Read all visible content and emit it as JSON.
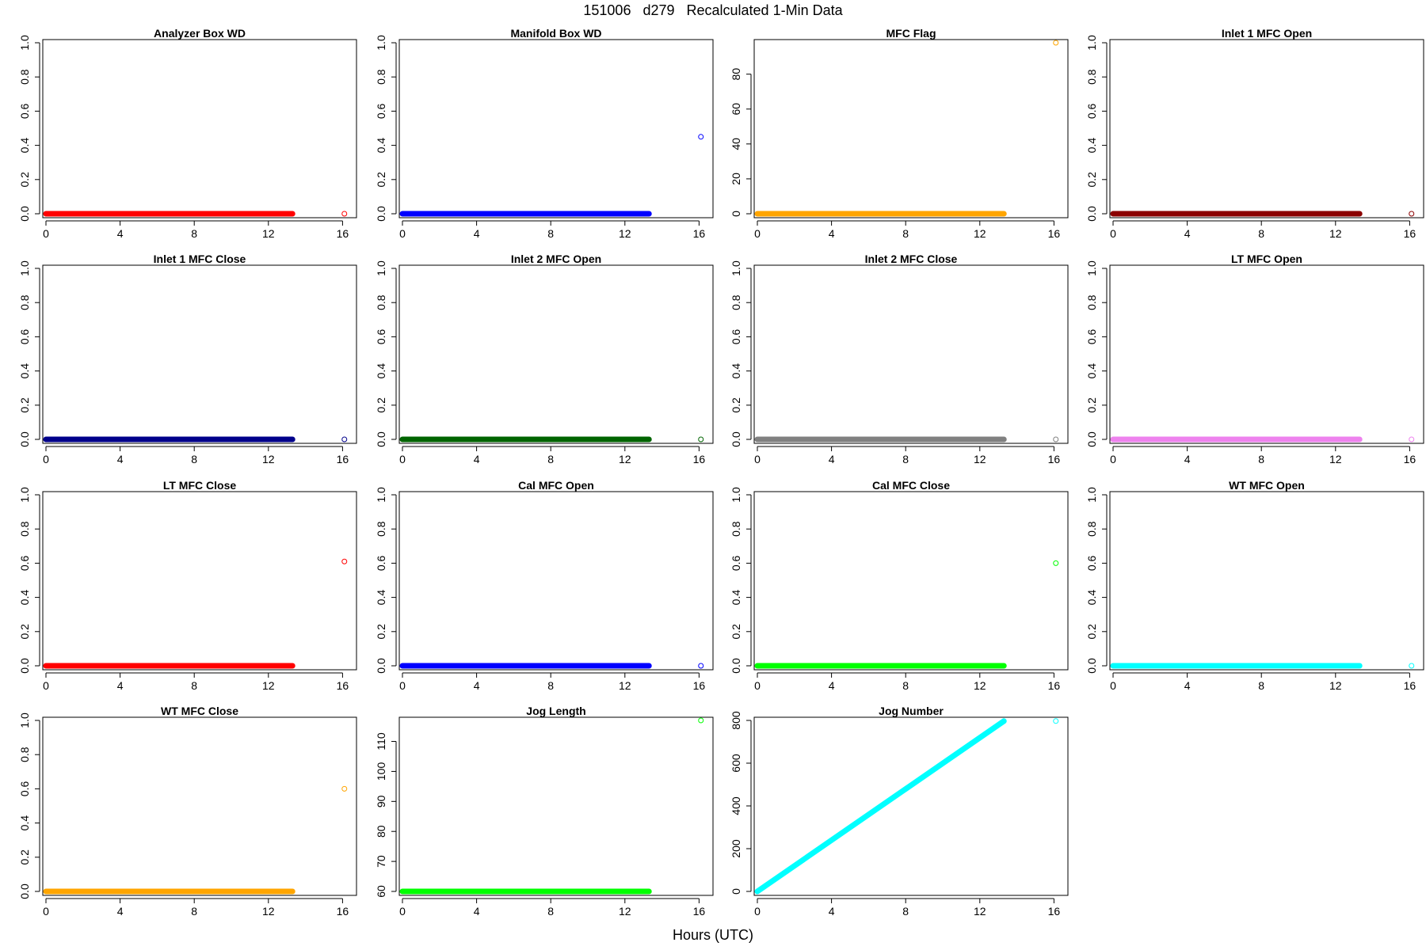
{
  "figure": {
    "title": "151006   d279   Recalculated 1-Min Data",
    "xlabel": "Hours (UTC)"
  },
  "chart_data": [
    {
      "type": "scatter",
      "title": "Analyzer Box WD",
      "color": "#ff0000",
      "xlim": [
        0,
        16
      ],
      "ylim": [
        0,
        1
      ],
      "xticks": [
        0,
        4,
        8,
        12,
        16
      ],
      "yticks": [
        0,
        0.2,
        0.4,
        0.6,
        0.8,
        1.0
      ],
      "ytick_labels": [
        "0.0",
        "0.2",
        "0.4",
        "0.6",
        "0.8",
        "1.0"
      ],
      "series_x_range": [
        0,
        13.3
      ],
      "series_y_range": [
        0,
        0
      ],
      "outlier": {
        "x": 16.1,
        "y": 0
      }
    },
    {
      "type": "scatter",
      "title": "Manifold Box WD",
      "color": "#0000ff",
      "xlim": [
        0,
        16
      ],
      "ylim": [
        0,
        1
      ],
      "xticks": [
        0,
        4,
        8,
        12,
        16
      ],
      "yticks": [
        0,
        0.2,
        0.4,
        0.6,
        0.8,
        1.0
      ],
      "ytick_labels": [
        "0.0",
        "0.2",
        "0.4",
        "0.6",
        "0.8",
        "1.0"
      ],
      "series_x_range": [
        0,
        13.3
      ],
      "series_y_range": [
        0,
        0
      ],
      "outlier": {
        "x": 16.1,
        "y": 0.45
      }
    },
    {
      "type": "scatter",
      "title": "MFC Flag",
      "color": "#ffa500",
      "xlim": [
        0,
        16
      ],
      "ylim": [
        0,
        98
      ],
      "xticks": [
        0,
        4,
        8,
        12,
        16
      ],
      "yticks": [
        0,
        20,
        40,
        60,
        80
      ],
      "ytick_labels": [
        "0",
        "20",
        "40",
        "60",
        "80"
      ],
      "series_x_range": [
        0,
        13.3
      ],
      "series_y_range": [
        0,
        0
      ],
      "outlier": {
        "x": 16.1,
        "y": 98
      }
    },
    {
      "type": "scatter",
      "title": "Inlet 1 MFC Open",
      "color": "#8b0000",
      "xlim": [
        0,
        16
      ],
      "ylim": [
        0,
        1
      ],
      "xticks": [
        0,
        4,
        8,
        12,
        16
      ],
      "yticks": [
        0,
        0.2,
        0.4,
        0.6,
        0.8,
        1.0
      ],
      "ytick_labels": [
        "0.0",
        "0.2",
        "0.4",
        "0.6",
        "0.8",
        "1.0"
      ],
      "series_x_range": [
        0,
        13.3
      ],
      "series_y_range": [
        0,
        0
      ],
      "outlier": {
        "x": 16.1,
        "y": 0
      }
    },
    {
      "type": "scatter",
      "title": "Inlet 1 MFC Close",
      "color": "#00008b",
      "xlim": [
        0,
        16
      ],
      "ylim": [
        0,
        1
      ],
      "xticks": [
        0,
        4,
        8,
        12,
        16
      ],
      "yticks": [
        0,
        0.2,
        0.4,
        0.6,
        0.8,
        1.0
      ],
      "ytick_labels": [
        "0.0",
        "0.2",
        "0.4",
        "0.6",
        "0.8",
        "1.0"
      ],
      "series_x_range": [
        0,
        13.3
      ],
      "series_y_range": [
        0,
        0
      ],
      "outlier": {
        "x": 16.1,
        "y": 0
      }
    },
    {
      "type": "scatter",
      "title": "Inlet 2 MFC Open",
      "color": "#006400",
      "xlim": [
        0,
        16
      ],
      "ylim": [
        0,
        1
      ],
      "xticks": [
        0,
        4,
        8,
        12,
        16
      ],
      "yticks": [
        0,
        0.2,
        0.4,
        0.6,
        0.8,
        1.0
      ],
      "ytick_labels": [
        "0.0",
        "0.2",
        "0.4",
        "0.6",
        "0.8",
        "1.0"
      ],
      "series_x_range": [
        0,
        13.3
      ],
      "series_y_range": [
        0,
        0
      ],
      "outlier": {
        "x": 16.1,
        "y": 0
      }
    },
    {
      "type": "scatter",
      "title": "Inlet 2 MFC Close",
      "color": "#808080",
      "xlim": [
        0,
        16
      ],
      "ylim": [
        0,
        1
      ],
      "xticks": [
        0,
        4,
        8,
        12,
        16
      ],
      "yticks": [
        0,
        0.2,
        0.4,
        0.6,
        0.8,
        1.0
      ],
      "ytick_labels": [
        "0.0",
        "0.2",
        "0.4",
        "0.6",
        "0.8",
        "1.0"
      ],
      "series_x_range": [
        0,
        13.3
      ],
      "series_y_range": [
        0,
        0
      ],
      "outlier": {
        "x": 16.1,
        "y": 0
      }
    },
    {
      "type": "scatter",
      "title": "LT MFC Open",
      "color": "#ee82ee",
      "xlim": [
        0,
        16
      ],
      "ylim": [
        0,
        1
      ],
      "xticks": [
        0,
        4,
        8,
        12,
        16
      ],
      "yticks": [
        0,
        0.2,
        0.4,
        0.6,
        0.8,
        1.0
      ],
      "ytick_labels": [
        "0.0",
        "0.2",
        "0.4",
        "0.6",
        "0.8",
        "1.0"
      ],
      "series_x_range": [
        0,
        13.3
      ],
      "series_y_range": [
        0,
        0
      ],
      "outlier": {
        "x": 16.1,
        "y": 0
      }
    },
    {
      "type": "scatter",
      "title": "LT MFC Close",
      "color": "#ff0000",
      "xlim": [
        0,
        16
      ],
      "ylim": [
        0,
        1
      ],
      "xticks": [
        0,
        4,
        8,
        12,
        16
      ],
      "yticks": [
        0,
        0.2,
        0.4,
        0.6,
        0.8,
        1.0
      ],
      "ytick_labels": [
        "0.0",
        "0.2",
        "0.4",
        "0.6",
        "0.8",
        "1.0"
      ],
      "series_x_range": [
        0,
        13.3
      ],
      "series_y_range": [
        0,
        0
      ],
      "outlier": {
        "x": 16.1,
        "y": 0.61
      }
    },
    {
      "type": "scatter",
      "title": "Cal MFC Open",
      "color": "#0000ff",
      "xlim": [
        0,
        16
      ],
      "ylim": [
        0,
        1
      ],
      "xticks": [
        0,
        4,
        8,
        12,
        16
      ],
      "yticks": [
        0,
        0.2,
        0.4,
        0.6,
        0.8,
        1.0
      ],
      "ytick_labels": [
        "0.0",
        "0.2",
        "0.4",
        "0.6",
        "0.8",
        "1.0"
      ],
      "series_x_range": [
        0,
        13.3
      ],
      "series_y_range": [
        0,
        0
      ],
      "outlier": {
        "x": 16.1,
        "y": 0
      }
    },
    {
      "type": "scatter",
      "title": "Cal MFC Close",
      "color": "#00ff00",
      "xlim": [
        0,
        16
      ],
      "ylim": [
        0,
        1
      ],
      "xticks": [
        0,
        4,
        8,
        12,
        16
      ],
      "yticks": [
        0,
        0.2,
        0.4,
        0.6,
        0.8,
        1.0
      ],
      "ytick_labels": [
        "0.0",
        "0.2",
        "0.4",
        "0.6",
        "0.8",
        "1.0"
      ],
      "series_x_range": [
        0,
        13.3
      ],
      "series_y_range": [
        0,
        0
      ],
      "outlier": {
        "x": 16.1,
        "y": 0.6
      }
    },
    {
      "type": "scatter",
      "title": "WT MFC Open",
      "color": "#00ffff",
      "xlim": [
        0,
        16
      ],
      "ylim": [
        0,
        1
      ],
      "xticks": [
        0,
        4,
        8,
        12,
        16
      ],
      "yticks": [
        0,
        0.2,
        0.4,
        0.6,
        0.8,
        1.0
      ],
      "ytick_labels": [
        "0.0",
        "0.2",
        "0.4",
        "0.6",
        "0.8",
        "1.0"
      ],
      "series_x_range": [
        0,
        13.3
      ],
      "series_y_range": [
        0,
        0
      ],
      "outlier": {
        "x": 16.1,
        "y": 0
      }
    },
    {
      "type": "scatter",
      "title": "WT MFC Close",
      "color": "#ffa500",
      "xlim": [
        0,
        16
      ],
      "ylim": [
        0,
        1
      ],
      "xticks": [
        0,
        4,
        8,
        12,
        16
      ],
      "yticks": [
        0,
        0.2,
        0.4,
        0.6,
        0.8,
        1.0
      ],
      "ytick_labels": [
        "0.0",
        "0.2",
        "0.4",
        "0.6",
        "0.8",
        "1.0"
      ],
      "series_x_range": [
        0,
        13.3
      ],
      "series_y_range": [
        0,
        0
      ],
      "outlier": {
        "x": 16.1,
        "y": 0.6
      }
    },
    {
      "type": "scatter",
      "title": "Jog Length",
      "color": "#00ff00",
      "xlim": [
        0,
        16
      ],
      "ylim": [
        60,
        117
      ],
      "xticks": [
        0,
        4,
        8,
        12,
        16
      ],
      "yticks": [
        60,
        70,
        80,
        90,
        100,
        110
      ],
      "ytick_labels": [
        "60",
        "70",
        "80",
        "90",
        "100",
        "110"
      ],
      "series_x_range": [
        0,
        13.3
      ],
      "series_y_range": [
        60,
        60
      ],
      "outlier": {
        "x": 16.1,
        "y": 117
      }
    },
    {
      "type": "scatter",
      "title": "Jog Number",
      "color": "#00ffff",
      "xlim": [
        0,
        16
      ],
      "ylim": [
        0,
        800
      ],
      "xticks": [
        0,
        4,
        8,
        12,
        16
      ],
      "yticks": [
        0,
        200,
        400,
        600,
        800
      ],
      "ytick_labels": [
        "0",
        "200",
        "400",
        "600",
        "800"
      ],
      "series_x_range": [
        0,
        13.3
      ],
      "series_y_range": [
        0,
        797
      ],
      "outlier": {
        "x": 16.1,
        "y": 797
      }
    }
  ]
}
